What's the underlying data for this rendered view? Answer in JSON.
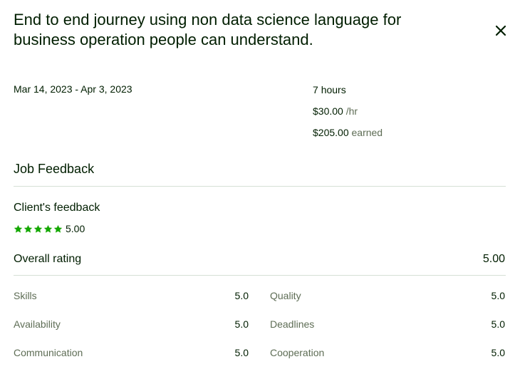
{
  "header": {
    "title": "End to end journey using non data science language for business operation people can understand."
  },
  "contract": {
    "date_range": "Mar 14, 2023 - Apr 3, 2023",
    "hours_value": "7",
    "hours_unit": "hours",
    "rate_value": "$30.00",
    "rate_unit": "/hr",
    "earned_value": "$205.00",
    "earned_unit": "earned"
  },
  "feedback": {
    "section_title": "Job Feedback",
    "client_label": "Client's feedback",
    "client_score": "5.00",
    "client_stars": 5,
    "overall_label": "Overall rating",
    "overall_value": "5.00",
    "categories": [
      {
        "label": "Skills",
        "value": "5.0"
      },
      {
        "label": "Quality",
        "value": "5.0"
      },
      {
        "label": "Availability",
        "value": "5.0"
      },
      {
        "label": "Deadlines",
        "value": "5.0"
      },
      {
        "label": "Communication",
        "value": "5.0"
      },
      {
        "label": "Cooperation",
        "value": "5.0"
      }
    ]
  },
  "colors": {
    "star": "#14a800",
    "text": "#001e00",
    "muted": "#5e6d55",
    "divider": "#d5e0d5"
  },
  "icons": {
    "close": "close-icon",
    "star": "star-icon"
  }
}
